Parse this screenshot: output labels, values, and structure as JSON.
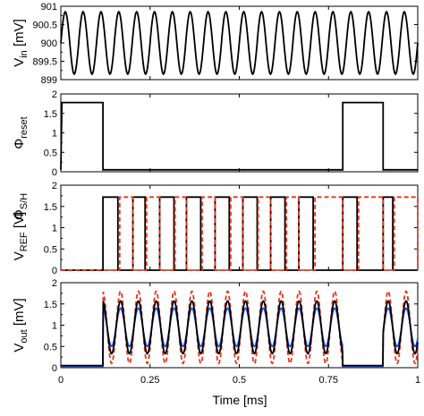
{
  "chart_data": [
    {
      "type": "line",
      "ylabel_main": "V",
      "ylabel_sub": "in",
      "ylabel_unit": " [mV]",
      "ylim": [
        899,
        901
      ],
      "yticks": [
        "901",
        "900.5",
        "900",
        "899.5",
        "899"
      ],
      "series": [
        {
          "color": "#000000",
          "signal": "sine",
          "offset": 900,
          "amplitude": 0.85,
          "cycles": 20
        }
      ]
    },
    {
      "type": "line",
      "ylabel_main": "Φ",
      "ylabel_sub": "reset",
      "ylim": [
        0,
        2
      ],
      "yticks": [
        "2",
        "1.5",
        "1",
        "0.5",
        "0"
      ],
      "series": [
        {
          "color": "#000000",
          "points": [
            [
              0,
              0.05
            ],
            [
              0.003,
              1.78
            ],
            [
              0.118,
              1.78
            ],
            [
              0.118,
              0.05
            ],
            [
              0.79,
              0.05
            ],
            [
              0.79,
              1.78
            ],
            [
              0.903,
              1.78
            ],
            [
              0.903,
              0.05
            ],
            [
              1.0,
              0.05
            ]
          ]
        }
      ]
    },
    {
      "type": "line",
      "ylabel_main": "V",
      "ylabel_sub": "REF",
      "ylabel_unit": " [V]",
      "ylabel_color": "#e8341c",
      "ylabel2_main": "Φ",
      "ylabel2_sub": "S/H",
      "ylim": [
        0,
        2
      ],
      "yticks": [
        "2",
        "1.5",
        "1",
        "0.5",
        "0"
      ],
      "series": [
        {
          "color": "#000000",
          "signal": "pulses",
          "high": 1.72,
          "low": 0.0,
          "edges": [
            [
              0.118,
              0.16
            ],
            [
              0.202,
              0.236
            ],
            [
              0.277,
              0.317
            ],
            [
              0.352,
              0.392
            ],
            [
              0.432,
              0.472
            ],
            [
              0.51,
              0.55
            ],
            [
              0.588,
              0.628
            ],
            [
              0.667,
              0.707
            ],
            [
              0.79,
              0.83
            ],
            [
              0.903,
              0.93
            ]
          ]
        },
        {
          "color": "#e8341c",
          "dashed": true,
          "signal": "pulses",
          "high": 1.72,
          "low": 0.0,
          "edges": [
            [
              0.165,
              0.202
            ],
            [
              0.24,
              0.277
            ],
            [
              0.32,
              0.352
            ],
            [
              0.396,
              0.432
            ],
            [
              0.476,
              0.51
            ],
            [
              0.553,
              0.588
            ],
            [
              0.632,
              0.667
            ],
            [
              0.712,
              0.79
            ],
            [
              0.834,
              0.903
            ],
            [
              0.934,
              1.0
            ]
          ]
        }
      ]
    },
    {
      "type": "line",
      "ylabel_main": "V",
      "ylabel_sub": "out",
      "ylabel_unit": " [mV]",
      "ylim": [
        0,
        2
      ],
      "yticks": [
        "2",
        "1.5",
        "1",
        "0.5",
        "0"
      ],
      "series": [
        {
          "color": "#e8341c",
          "dashed": true,
          "signal": "gated_sine",
          "offset": 0.95,
          "amplitude": 0.85,
          "cycles": 20,
          "flat": 0.02
        },
        {
          "color": "#1f4fd8",
          "signal": "gated_sine",
          "offset": 0.95,
          "amplitude": 0.45,
          "cycles": 20,
          "flat": 0.02
        },
        {
          "color": "#000000",
          "signal": "gated_sine",
          "offset": 0.95,
          "amplitude": 0.62,
          "cycles": 20,
          "flat": 0.05
        }
      ],
      "gates_off": [
        [
          0.0,
          0.118
        ],
        [
          0.79,
          0.903
        ]
      ]
    }
  ],
  "xaxis": {
    "label": "Time [ms]",
    "xlim": [
      0,
      1
    ],
    "ticks": [
      {
        "value": 0,
        "label": "0"
      },
      {
        "value": 0.25,
        "label": "0.25"
      },
      {
        "value": 0.5,
        "label": "0.5"
      },
      {
        "value": 0.75,
        "label": "0.75"
      },
      {
        "value": 1,
        "label": "1"
      }
    ]
  }
}
